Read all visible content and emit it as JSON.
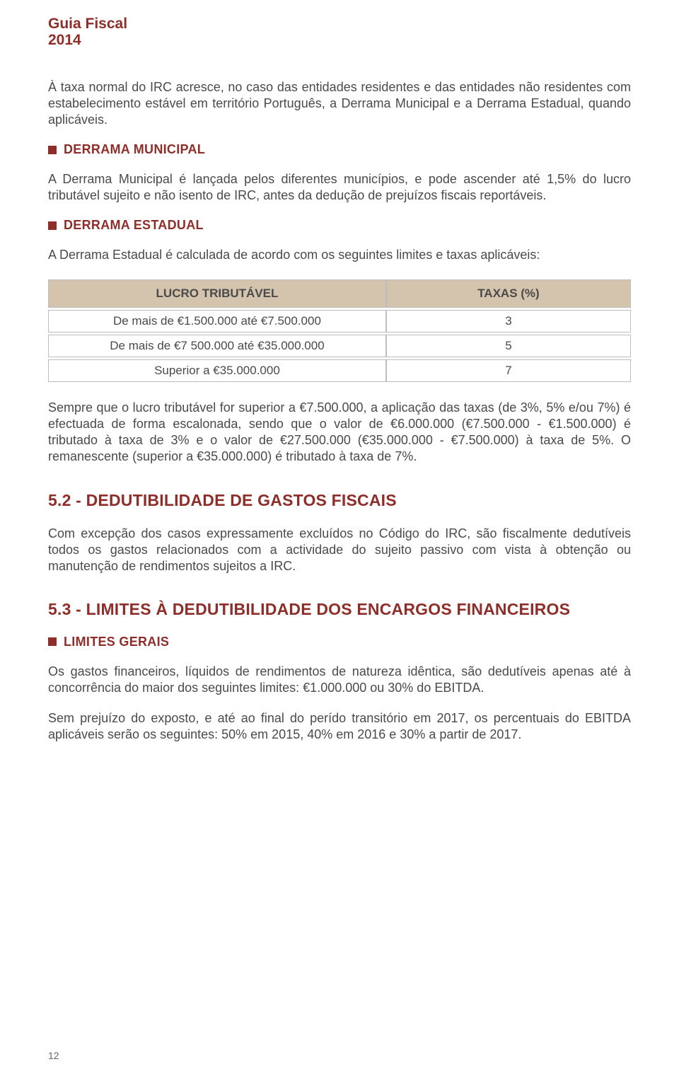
{
  "header": {
    "line1": "Guia Fiscal",
    "line2": "2014"
  },
  "intro_para": "À taxa normal do IRC acresce, no caso das entidades residentes e das entidades não residentes com estabelecimento estável em território Português, a Derrama Municipal e a Derrama Estadual, quando aplicáveis.",
  "municipal": {
    "heading": "DERRAMA MUNICIPAL",
    "para": "A Derrama Municipal é lançada pelos diferentes municípios, e pode ascender até 1,5% do lucro tributável sujeito e não isento de IRC, antes da dedução de prejuízos fiscais reportáveis."
  },
  "estadual": {
    "heading": "DERRAMA ESTADUAL",
    "para": "A Derrama Estadual é calculada de acordo com os seguintes limites e taxas aplicáveis:"
  },
  "tax_table": {
    "col1": "LUCRO TRIBUTÁVEL",
    "col2": "TAXAS (%)",
    "rows": [
      {
        "c1": "De mais de €1.500.000 até €7.500.000",
        "c2": "3"
      },
      {
        "c1": "De mais de €7 500.000 até €35.000.000",
        "c2": "5"
      },
      {
        "c1": "Superior a €35.000.000",
        "c2": "7"
      }
    ],
    "header_bg": "#d5c4ad",
    "border_color": "#bdbdbd"
  },
  "after_table_para": "Sempre que o lucro tributável for superior a €7.500.000, a aplicação das taxas (de 3%, 5% e/ou 7%) é efectuada de forma escalonada, sendo que o valor de €6.000.000 (€7.500.000 - €1.500.000) é tributado à taxa de 3% e o valor de €27.500.000 (€35.000.000 - €7.500.000) à taxa de 5%. O remanescente (superior a €35.000.000) é tributado à taxa de 7%.",
  "section52": {
    "heading": "5.2 - DEDUTIBILIDADE DE GASTOS FISCAIS",
    "para": "Com excepção dos casos expressamente excluídos no Código do IRC, são fiscalmente dedutíveis todos os gastos relacionados com a actividade do sujeito passivo com vista à obtenção ou manutenção de rendimentos sujeitos a IRC."
  },
  "section53": {
    "heading": "5.3 - LIMITES À DEDUTIBILIDADE DOS ENCARGOS FINANCEIROS",
    "subheading": "LIMITES GERAIS",
    "para1": "Os gastos financeiros, líquidos de rendimentos de natureza idêntica, são dedutíveis apenas até à concorrência do maior dos seguintes limites: €1.000.000 ou 30% do EBITDA.",
    "para2": "Sem prejuízo do exposto, e até ao final do perído transitório em 2017, os percentuais do EBITDA aplicáveis serão os seguintes: 50% em 2015, 40% em 2016 e 30% a partir de 2017."
  },
  "page_number": "12",
  "colors": {
    "accent": "#8e2e2a",
    "text": "#4a4a4a"
  }
}
